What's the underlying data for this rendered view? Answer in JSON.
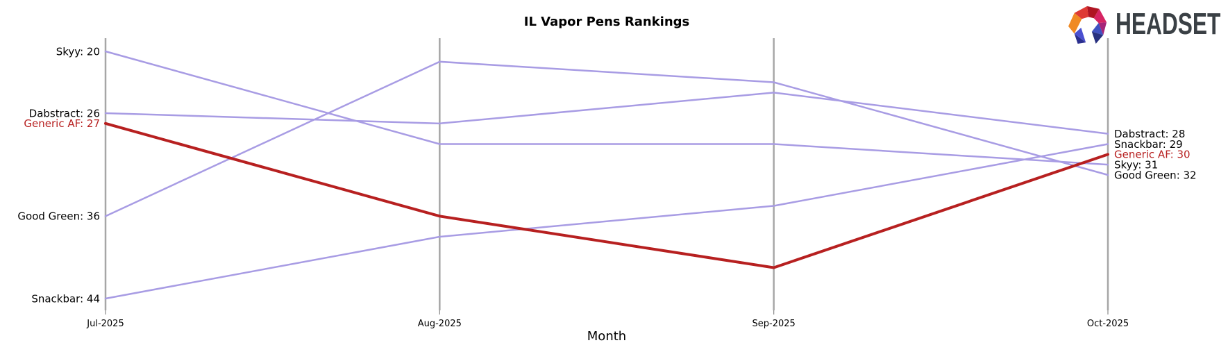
{
  "page": {
    "background": "#ffffff"
  },
  "logo": {
    "text": "HEADSET",
    "icon": "headset-faceted-arch-logo"
  },
  "chart_data": {
    "type": "line",
    "variant": "bump-ranking-chart",
    "title": "IL Vapor Pens Rankings",
    "xlabel": "Month",
    "categories": [
      "Jul-2025",
      "Aug-2025",
      "Sep-2025",
      "Oct-2025"
    ],
    "series": [
      {
        "name": "Skyy",
        "values": [
          20,
          29,
          29,
          31
        ],
        "color": "#a89ce4",
        "highlight": false
      },
      {
        "name": "Dabstract",
        "values": [
          26,
          27,
          24,
          28
        ],
        "color": "#a89ce4",
        "highlight": false
      },
      {
        "name": "Generic AF",
        "values": [
          27,
          36,
          41,
          30
        ],
        "color": "#b72020",
        "highlight": true
      },
      {
        "name": "Good Green",
        "values": [
          36,
          21,
          23,
          32
        ],
        "color": "#a89ce4",
        "highlight": false
      },
      {
        "name": "Snackbar",
        "values": [
          44,
          38,
          35,
          29
        ],
        "color": "#a89ce4",
        "highlight": false
      }
    ],
    "start_labels": [
      "Skyy: 20",
      "Dabstract: 26",
      "Generic AF: 27",
      "Good Green: 36",
      "Snackbar: 44"
    ],
    "end_labels": [
      "Dabstract: 28",
      "Snackbar: 29",
      "Generic AF: 30",
      "Skyy: 31",
      "Good Green: 32"
    ],
    "label_format": "{name}: {value}",
    "y_axis": {
      "inverted": true,
      "min_rank": 20,
      "max_rank": 44,
      "gridlines": false,
      "ticks_shown": false
    },
    "legend": "none",
    "axis_color": "#a6a6a6",
    "text_color": "#000000"
  }
}
